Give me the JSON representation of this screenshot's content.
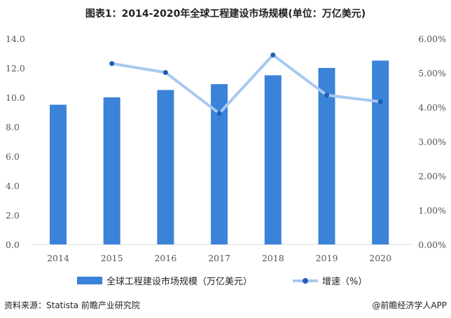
{
  "chart_data": {
    "type": "bar+line",
    "title": "图表1：2014-2020年全球工程建设市场规模(单位：万亿美元)",
    "categories": [
      "2014",
      "2015",
      "2016",
      "2017",
      "2018",
      "2019",
      "2020"
    ],
    "series": [
      {
        "name": "全球工程建设市场规模（万亿美元）",
        "type": "bar",
        "axis": "left",
        "color": "#3b82d9",
        "values": [
          9.5,
          10.0,
          10.5,
          10.9,
          11.5,
          12.0,
          12.5
        ]
      },
      {
        "name": "增速（%）",
        "type": "line",
        "axis": "right",
        "color": "#a7c9f0",
        "marker_color": "#1f5fb8",
        "values": [
          null,
          5.27,
          5.01,
          3.82,
          5.52,
          4.35,
          4.16
        ]
      }
    ],
    "left_axis": {
      "range": [
        0,
        14
      ],
      "ticks": [
        "0.0",
        "2.0",
        "4.0",
        "6.0",
        "8.0",
        "10.0",
        "12.0",
        "14.0"
      ]
    },
    "right_axis": {
      "range": [
        0,
        6
      ],
      "ticks": [
        "0.00%",
        "1.00%",
        "2.00%",
        "3.00%",
        "4.00%",
        "5.00%",
        "6.00%"
      ]
    },
    "grid": false,
    "legend": "bottom"
  },
  "footer": {
    "source": "资料来源：Statista 前瞻产业研究院",
    "brand": "@前瞻经济学人APP"
  }
}
